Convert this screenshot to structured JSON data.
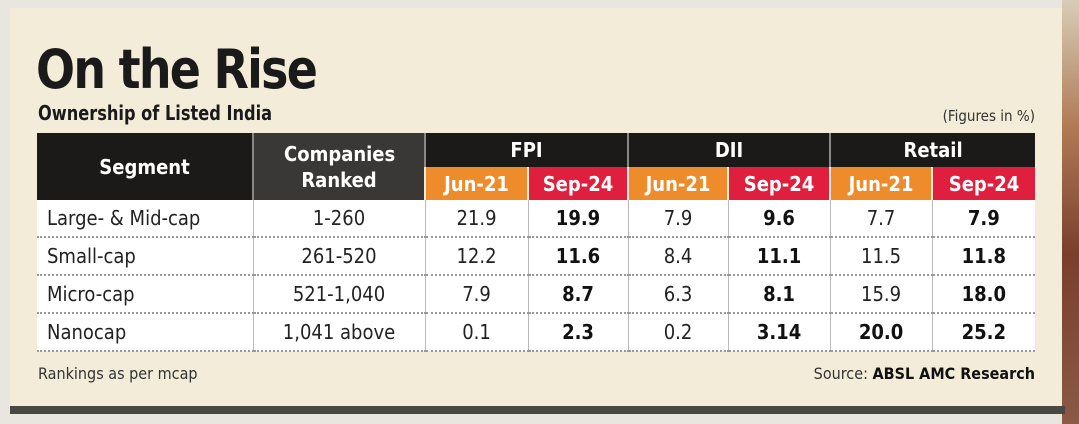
{
  "title": "On the Rise",
  "subtitle": "Ownership of Listed India",
  "units_note": "(Figures in %)",
  "footnote": "Rankings as per mcap",
  "source_label": "Source:",
  "source": "ABSL AMC Research",
  "colors": {
    "jun21": "#ee8b2a",
    "sep24": "#df1f3d",
    "header": "#1c1a19",
    "panel": "#f2ecd9"
  },
  "chart_data": {
    "type": "table",
    "headers": {
      "segment": "Segment",
      "companies": "Companies Ranked",
      "groups": [
        "FPI",
        "DII",
        "Retail"
      ],
      "periods": [
        "Jun-21",
        "Sep-24"
      ]
    },
    "rows": [
      {
        "segment": "Large- & Mid-cap",
        "companies": "1-260",
        "values": [
          "21.9",
          "19.9",
          "7.9",
          "9.6",
          "7.7",
          "7.9"
        ],
        "bold": [
          false,
          true,
          false,
          true,
          false,
          true
        ]
      },
      {
        "segment": "Small-cap",
        "companies": "261-520",
        "values": [
          "12.2",
          "11.6",
          "8.4",
          "11.1",
          "11.5",
          "11.8"
        ],
        "bold": [
          false,
          true,
          false,
          true,
          false,
          true
        ]
      },
      {
        "segment": "Micro-cap",
        "companies": "521-1,040",
        "values": [
          "7.9",
          "8.7",
          "6.3",
          "8.1",
          "15.9",
          "18.0"
        ],
        "bold": [
          false,
          true,
          false,
          true,
          false,
          true
        ]
      },
      {
        "segment": "Nanocap",
        "companies": "1,041 above",
        "values": [
          "0.1",
          "2.3",
          "0.2",
          "3.14",
          "20.0",
          "25.2"
        ],
        "bold": [
          false,
          true,
          false,
          true,
          true,
          true
        ]
      }
    ]
  }
}
